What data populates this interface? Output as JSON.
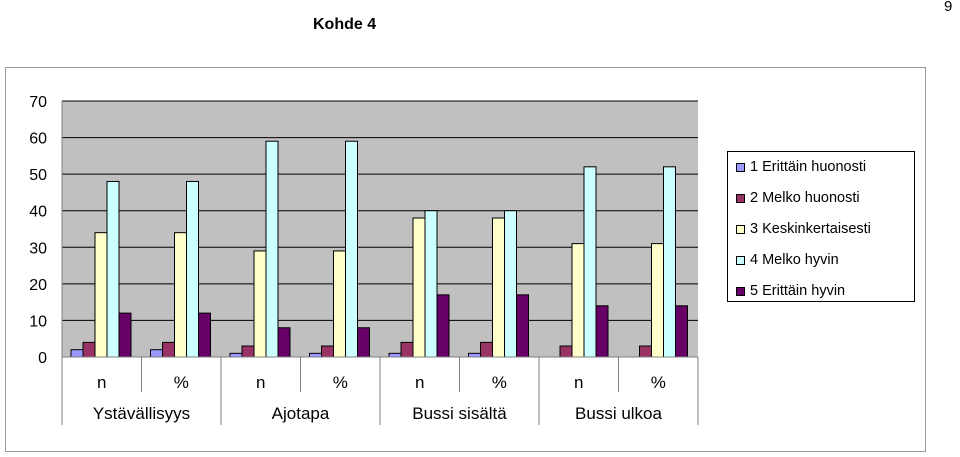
{
  "page_number": "9",
  "chart_data": {
    "type": "bar",
    "title": "Kohde 4",
    "category_groups": [
      "Ystävällisyys",
      "Ajotapa",
      "Bussi sisältä",
      "Bussi ulkoa"
    ],
    "categories": [
      "n",
      "%",
      "n",
      "%",
      "n",
      "%",
      "n",
      "%"
    ],
    "ylim": [
      0,
      70
    ],
    "yticks": [
      "0",
      "10",
      "20",
      "30",
      "40",
      "50",
      "60",
      "70"
    ],
    "grid": true,
    "legend_position": "right",
    "plot_background": "#c0c0c0",
    "series": [
      {
        "name": "1 Erittäin huonosti",
        "color": "#9999ff",
        "values": [
          2,
          2,
          1,
          1,
          1,
          1,
          0,
          0
        ]
      },
      {
        "name": "2 Melko huonosti",
        "color": "#993366",
        "values": [
          4,
          4,
          3,
          3,
          4,
          4,
          3,
          3
        ]
      },
      {
        "name": "3 Keskinkertaisesti",
        "color": "#ffffcc",
        "values": [
          34,
          34,
          29,
          29,
          38,
          38,
          31,
          31
        ]
      },
      {
        "name": "4 Melko hyvin",
        "color": "#ccffff",
        "values": [
          48,
          48,
          59,
          59,
          40,
          40,
          52,
          52
        ]
      },
      {
        "name": "5 Erittäin hyvin",
        "color": "#660066",
        "values": [
          12,
          12,
          8,
          8,
          17,
          17,
          14,
          14
        ]
      }
    ]
  }
}
